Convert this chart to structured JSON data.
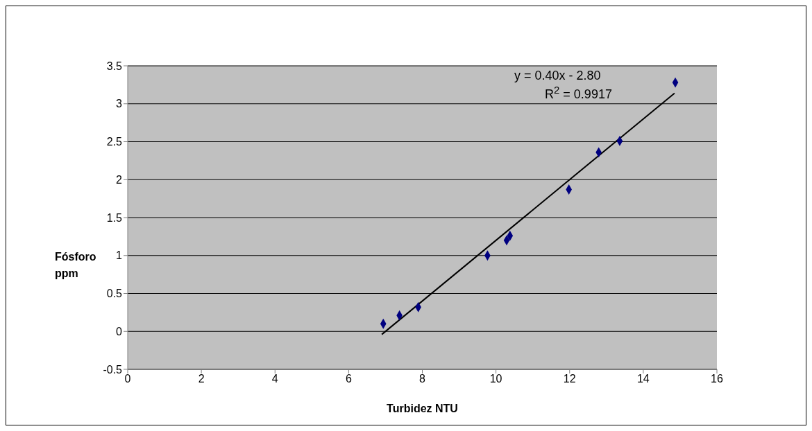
{
  "chart_data": {
    "type": "scatter",
    "xlabel": "Turbidez NTU",
    "ylabel": "Fósforo ppm",
    "annotations": [
      "y = 0.40x - 2.80",
      "R$^{2}$ = 0.9917"
    ],
    "series": [
      {
        "color": "#000080",
        "marker": "diamond",
        "x": [
          6.94,
          7.38,
          7.89,
          9.77,
          10.29,
          10.38,
          11.98,
          12.79,
          13.36,
          14.87
        ],
        "values": [
          0.1,
          0.21,
          0.32,
          1.0,
          1.2,
          1.26,
          1.87,
          2.36,
          2.51,
          3.28
        ]
      },
      {
        "type": "line",
        "color": "#000000",
        "marker": "none",
        "x": [
          6.9,
          14.85
        ],
        "values": [
          -0.04,
          3.14
        ]
      }
    ],
    "xlim": [
      0,
      16
    ],
    "xticks": [
      0,
      2,
      4,
      6,
      8,
      10,
      12,
      14,
      16
    ],
    "ylim": [
      -0.5,
      3.5
    ],
    "yticks": [
      -0.5,
      0,
      0.5,
      1,
      1.5,
      2,
      2.5,
      3,
      3.5
    ],
    "grid": "y"
  }
}
